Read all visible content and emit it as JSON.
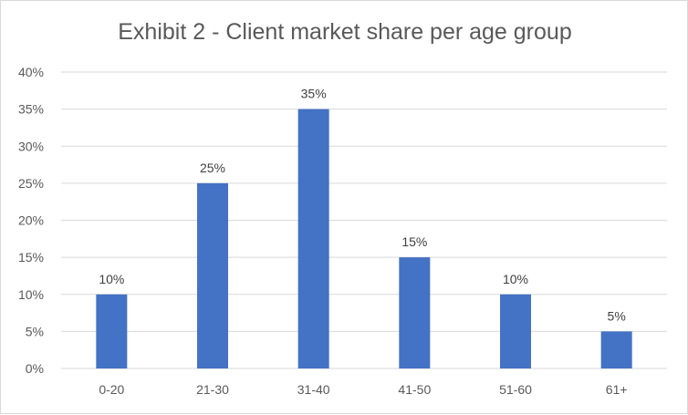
{
  "chart_data": {
    "type": "bar",
    "title": "Exhibit 2 - Client market share per age group",
    "categories": [
      "0-20",
      "21-30",
      "31-40",
      "41-50",
      "51-60",
      "61+"
    ],
    "series": [
      {
        "values": [
          10,
          25,
          35,
          15,
          10,
          5
        ],
        "color": "#4472c4"
      }
    ],
    "data_labels": [
      "10%",
      "25%",
      "35%",
      "15%",
      "10%",
      "5%"
    ],
    "y_ticks": [
      "0%",
      "5%",
      "10%",
      "15%",
      "20%",
      "25%",
      "30%",
      "35%",
      "40%"
    ],
    "ylim": [
      0,
      40
    ],
    "y_step": 5,
    "grid": true,
    "legend": "none",
    "colors": {
      "bar": "#4472c4",
      "grid": "#d9d9d9",
      "text": "#595959"
    }
  }
}
